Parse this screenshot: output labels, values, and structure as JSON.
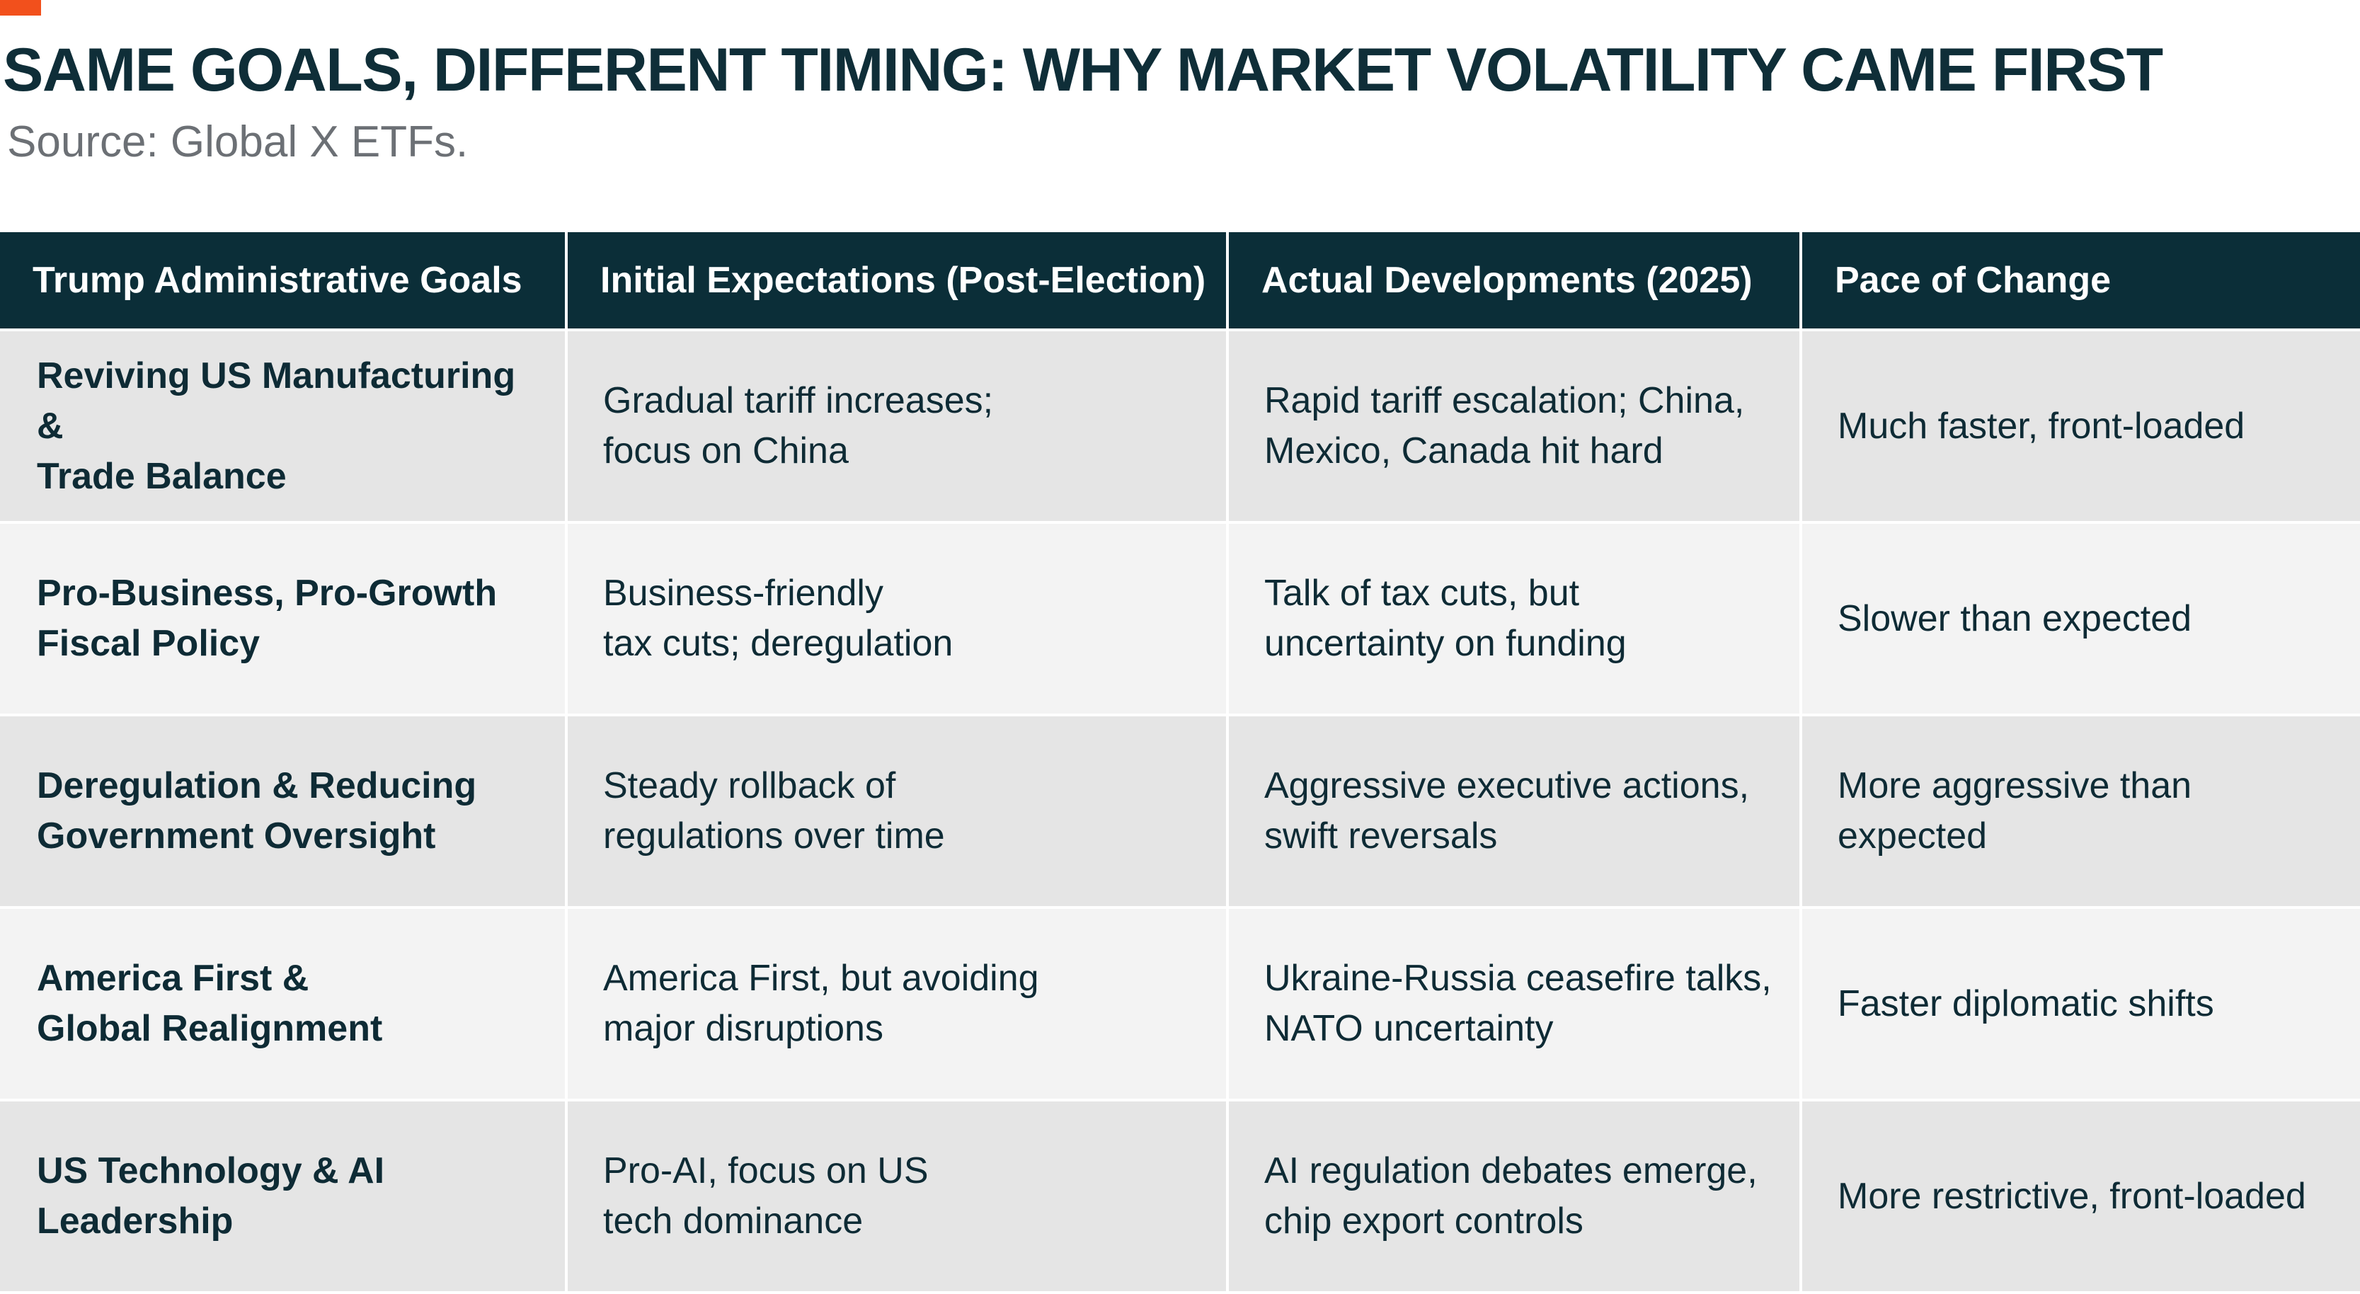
{
  "title": "SAME GOALS, DIFFERENT TIMING: WHY MARKET VOLATILITY CAME FIRST",
  "subtitle": "Source: Global X ETFs.",
  "colors": {
    "accent": "#f2501c",
    "header_bg": "#0b2e38",
    "row_dark": "#e5e5e5",
    "row_light": "#f3f3f3",
    "text": "#0e2b35"
  },
  "table": {
    "headers": [
      "Trump Administrative Goals",
      "Initial Expectations (Post-Election)",
      "Actual Developments (2025)",
      "Pace of Change"
    ],
    "rows": [
      {
        "goal": "Reviving US Manufacturing &\nTrade Balance",
        "expectation": "Gradual tariff increases;\nfocus on China",
        "development": "Rapid tariff escalation; China,\nMexico, Canada hit hard",
        "pace": "Much faster, front-loaded"
      },
      {
        "goal": "Pro-Business, Pro-Growth\nFiscal Policy",
        "expectation": "Business-friendly\ntax cuts; deregulation",
        "development": "Talk of tax cuts, but\nuncertainty on funding",
        "pace": "Slower than expected"
      },
      {
        "goal": "Deregulation & Reducing\nGovernment Oversight",
        "expectation": "Steady rollback of\nregulations over time",
        "development": "Aggressive executive actions,\nswift reversals",
        "pace": "More aggressive than expected"
      },
      {
        "goal": "America First &\nGlobal Realignment",
        "expectation": "America First, but avoiding\nmajor disruptions",
        "development": "Ukraine-Russia ceasefire talks,\nNATO uncertainty",
        "pace": "Faster diplomatic shifts"
      },
      {
        "goal": "US Technology & AI Leadership",
        "expectation": "Pro-AI, focus on US\ntech dominance",
        "development": "AI regulation debates emerge,\nchip export controls",
        "pace": "More restrictive, front-loaded"
      }
    ]
  }
}
